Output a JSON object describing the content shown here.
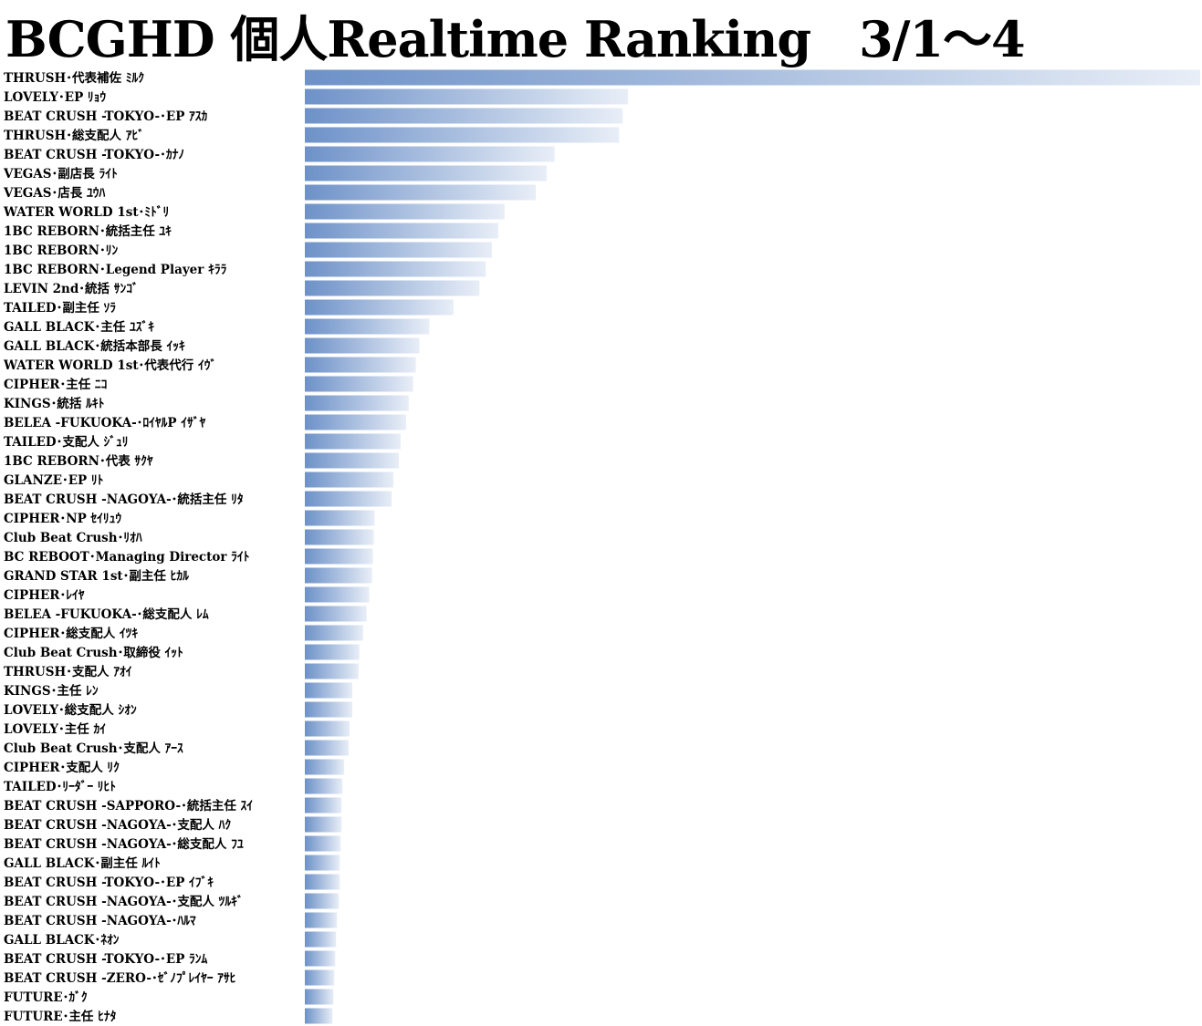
{
  "chart_data": {
    "type": "bar",
    "orientation": "horizontal",
    "title": "BCGHD 個人Realtime Ranking　3/1～4",
    "xlabel": "",
    "ylabel": "",
    "grid": false,
    "legend": "none",
    "gradient_colors": [
      "#6d91c8",
      "#e8eef7"
    ],
    "categories": [
      "THRUSH･代表補佐 ﾐﾙｸ",
      "LOVELY･EP ﾘｮｳ",
      "BEAT CRUSH -TOKYO-･EP ｱｽｶ",
      "THRUSH･総支配人 ｱﾋﾞ",
      "BEAT CRUSH -TOKYO-･ｶﾅﾉ",
      "VEGAS･副店長 ﾗｲﾄ",
      "VEGAS･店長 ﾕｳﾊ",
      "WATER WORLD 1st･ﾐﾄﾞﾘ",
      "1BC REBORN･統括主任 ﾕｷ",
      "1BC REBORN･ﾘﾝ",
      "1BC REBORN･Legend Player ｷﾗﾗ",
      "LEVIN 2nd･統括 ｻﾝｺﾞ",
      "TAILED･副主任 ｿﾗ",
      "GALL BLACK･主任 ﾕｽﾞｷ",
      "GALL BLACK･統括本部長 ｲｯｷ",
      "WATER WORLD 1st･代表代行 ｲｳﾞ",
      "CIPHER･主任 ﾆｺ",
      "KINGS･統括 ﾙｷﾄ",
      "BELEA -FUKUOKA-･ﾛｲﾔﾙP ｲｻﾞﾔ",
      "TAILED･支配人 ｼﾞｭﾘ",
      "1BC REBORN･代表 ｻｸﾔ",
      "GLANZE･EP ﾘﾄ",
      "BEAT CRUSH -NAGOYA-･統括主任 ﾘﾀ",
      "CIPHER･NP ｾｲﾘｭｳ",
      "Club Beat Crush･ﾘｵﾊ",
      "BC REBOOT･Managing Director ﾗｲﾄ",
      "GRAND STAR 1st･副主任 ﾋｶﾙ",
      "CIPHER･ﾚｲﾔ",
      "BELEA -FUKUOKA-･総支配人 ﾚﾑ",
      "CIPHER･総支配人 ｲﾂｷ",
      "Club Beat Crush･取締役 ｲｯﾄ",
      "THRUSH･支配人 ｱｵｲ",
      "KINGS･主任 ﾚﾝ",
      "LOVELY･総支配人 ｼｵﾝ",
      "LOVELY･主任 ｶｲ",
      "Club Beat Crush･支配人 ｱｰｽ",
      "CIPHER･支配人 ﾘｸ",
      "TAILED･ﾘｰﾀﾞｰ ﾘﾋﾄ",
      "BEAT CRUSH -SAPPORO-･統括主任 ｽｲ",
      "BEAT CRUSH -NAGOYA-･支配人 ﾊｸ",
      "BEAT CRUSH -NAGOYA-･総支配人 ﾌﾕ",
      "GALL BLACK･副主任 ﾙｲﾄ",
      "BEAT CRUSH -TOKYO-･EP ｲﾌﾞｷ",
      "BEAT CRUSH -NAGOYA-･支配人 ﾂﾙｷﾞ",
      "BEAT CRUSH -NAGOYA-･ﾊﾙﾏ",
      "GALL BLACK･ﾈｵﾝ",
      "BEAT CRUSH -TOKYO-･EP ﾗﾝﾑ",
      "BEAT CRUSH -ZERO-･ｾﾞﾉﾌﾟﾚｲﾔｰ ｱｻﾋ",
      "FUTURE･ｶﾞｸ",
      "FUTURE･主任 ﾋﾅﾀ"
    ],
    "values": [
      100,
      36.1,
      35.5,
      35.1,
      27.9,
      27.0,
      25.8,
      22.3,
      21.6,
      20.9,
      20.2,
      19.5,
      16.6,
      13.9,
      12.8,
      12.4,
      12.1,
      11.6,
      11.3,
      10.7,
      10.5,
      9.9,
      9.7,
      7.8,
      7.7,
      7.6,
      7.5,
      7.2,
      6.9,
      6.5,
      6.1,
      6.0,
      5.3,
      5.3,
      5.0,
      4.9,
      4.4,
      4.2,
      4.1,
      4.1,
      4.0,
      3.9,
      3.9,
      3.8,
      3.6,
      3.5,
      3.4,
      3.3,
      3.2,
      3.1
    ]
  }
}
